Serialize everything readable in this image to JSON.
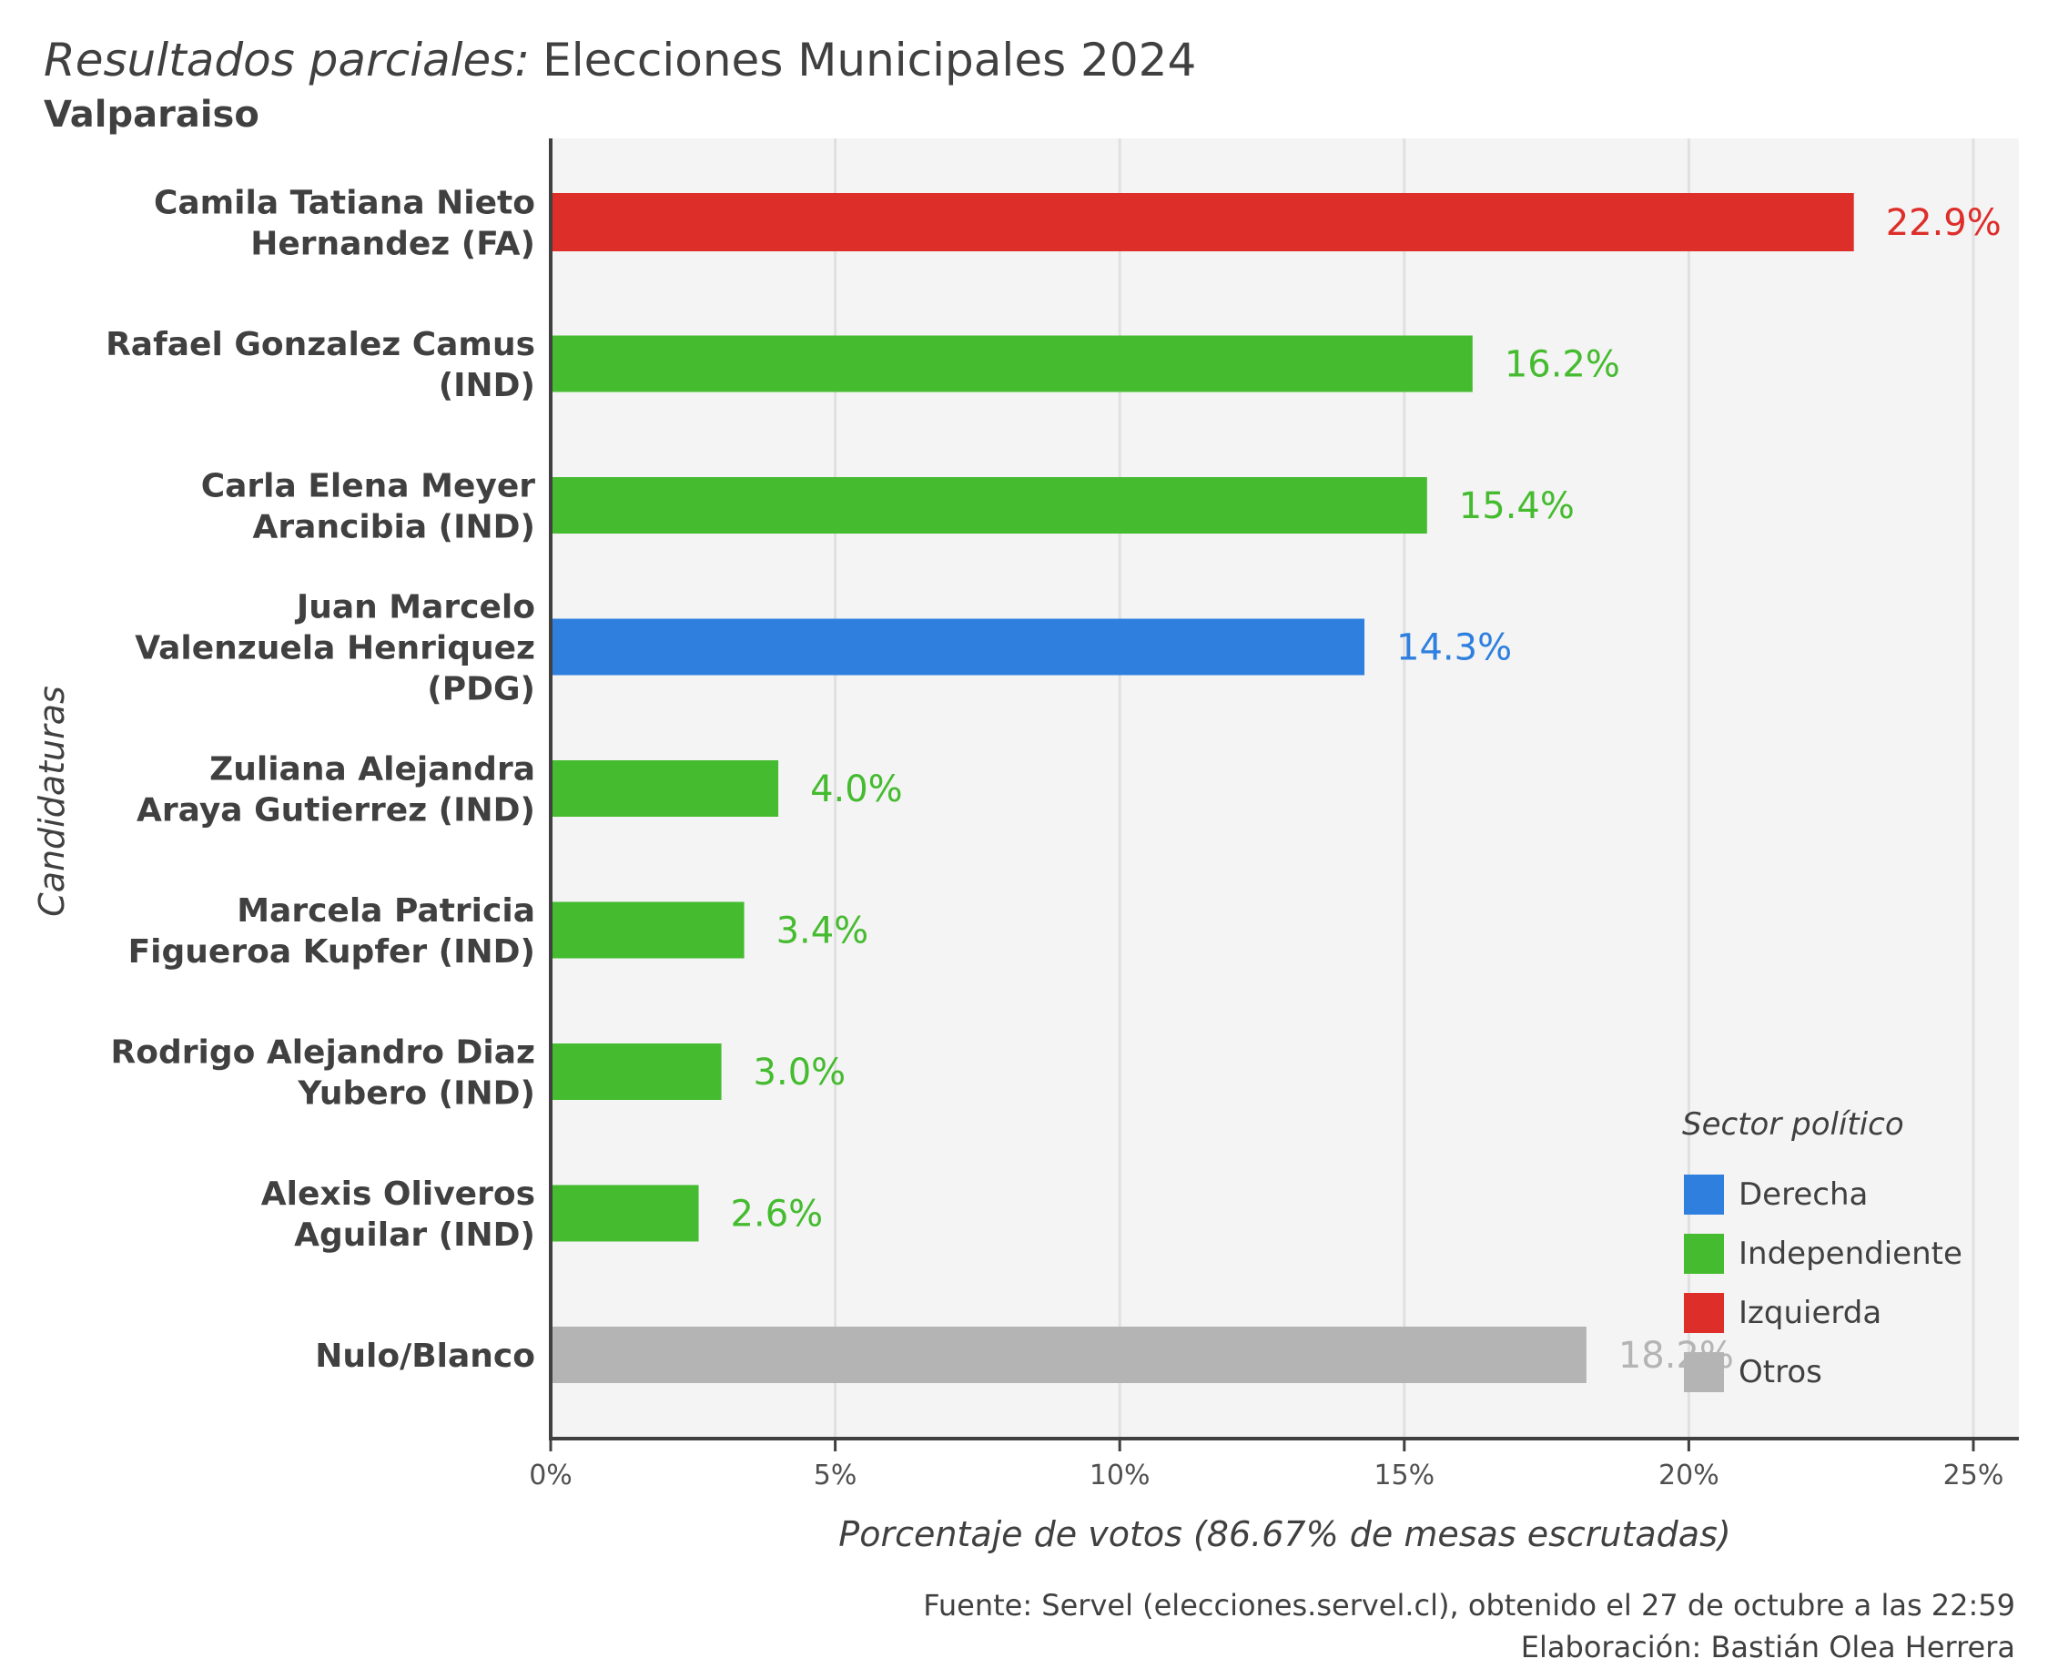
{
  "header": {
    "title_italic": "Resultados parciales:",
    "title_main": "Elecciones Municipales 2024",
    "subtitle": "Valparaiso"
  },
  "caption": {
    "source": "Fuente: Servel (elecciones.servel.cl), obtenido el 27 de octubre a las 22:59",
    "author": "Elaboración: Bastián Olea Herrera"
  },
  "colors": {
    "Derecha": "#2f7fdf",
    "Independiente": "#45bb2f",
    "Izquierda": "#dd2e2a",
    "Otros": "#b4b4b4",
    "panel": "#f4f4f4",
    "grid": "#e0e0e0",
    "axis": "#404040"
  },
  "chart_data": {
    "type": "bar",
    "orientation": "horizontal",
    "xlabel": "Porcentaje de votos (86.67% de mesas escrutadas)",
    "ylabel": "Candidaturas",
    "xlim": [
      0,
      25.8
    ],
    "x_ticks": [
      0,
      5,
      10,
      15,
      20,
      25
    ],
    "x_tick_labels": [
      "0%",
      "5%",
      "10%",
      "15%",
      "20%",
      "25%"
    ],
    "grid": "vertical",
    "legend": {
      "title": "Sector político",
      "placement": "bottom-right",
      "entries": [
        "Derecha",
        "Independiente",
        "Izquierda",
        "Otros"
      ]
    },
    "categories": [
      {
        "label_lines": [
          "Camila Tatiana Nieto",
          "Hernandez (FA)"
        ],
        "value": 22.9,
        "label": "22.9%",
        "sector": "Izquierda",
        "thick": true
      },
      {
        "label_lines": [
          "Rafael Gonzalez Camus",
          "(IND)"
        ],
        "value": 16.2,
        "label": "16.2%",
        "sector": "Independiente",
        "thick": false
      },
      {
        "label_lines": [
          "Carla Elena Meyer",
          "Arancibia (IND)"
        ],
        "value": 15.4,
        "label": "15.4%",
        "sector": "Independiente",
        "thick": false
      },
      {
        "label_lines": [
          "Juan Marcelo",
          "Valenzuela Henriquez",
          "(PDG)"
        ],
        "value": 14.3,
        "label": "14.3%",
        "sector": "Derecha",
        "thick": false
      },
      {
        "label_lines": [
          "Zuliana Alejandra",
          "Araya Gutierrez (IND)"
        ],
        "value": 4.0,
        "label": "4.0%",
        "sector": "Independiente",
        "thick": false
      },
      {
        "label_lines": [
          "Marcela Patricia",
          "Figueroa Kupfer (IND)"
        ],
        "value": 3.4,
        "label": "3.4%",
        "sector": "Independiente",
        "thick": false
      },
      {
        "label_lines": [
          "Rodrigo Alejandro Diaz",
          "Yubero (IND)"
        ],
        "value": 3.0,
        "label": "3.0%",
        "sector": "Independiente",
        "thick": false
      },
      {
        "label_lines": [
          "Alexis Oliveros",
          "Aguilar (IND)"
        ],
        "value": 2.6,
        "label": "2.6%",
        "sector": "Independiente",
        "thick": false
      },
      {
        "label_lines": [
          "Nulo/Blanco"
        ],
        "value": 18.2,
        "label": "18.2%",
        "sector": "Otros",
        "thick": false
      }
    ]
  }
}
